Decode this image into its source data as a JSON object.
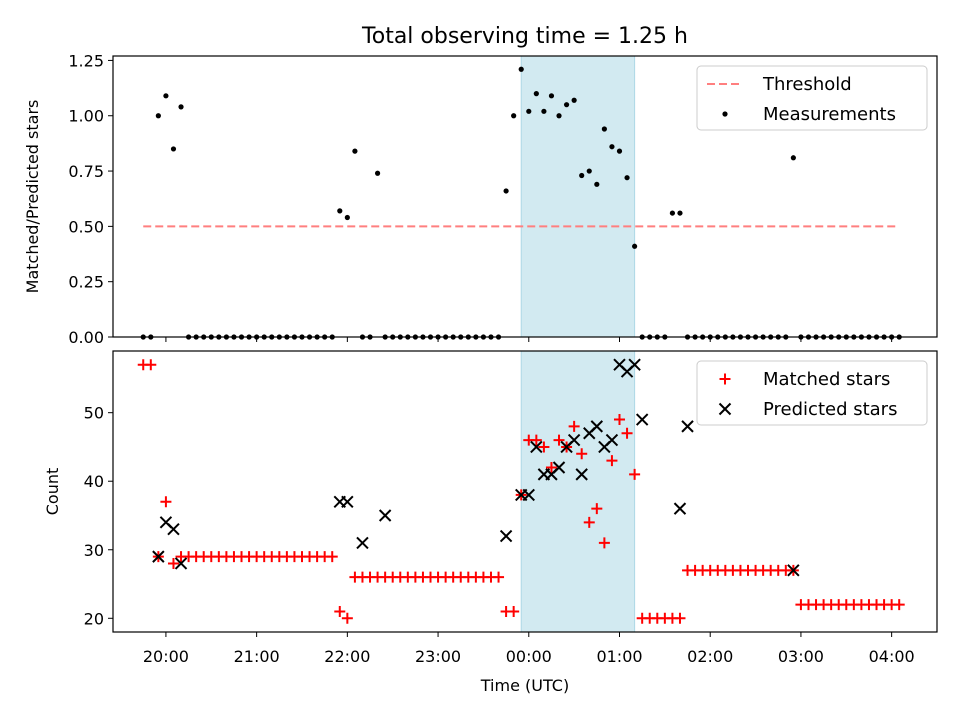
{
  "title": "Total observing time = 1.25 h",
  "colors": {
    "threshold": "#ff7f7f",
    "measurements": "#000000",
    "matched": "#ff0000",
    "predicted": "#000000",
    "window": "#add8e6"
  },
  "chart_data": [
    {
      "type": "scatter",
      "ylabel": "Matched/Predicted stars",
      "xlim": [
        "19:25",
        "04:30"
      ],
      "ylim": [
        0,
        1.27
      ],
      "yticks": [
        "0.00",
        "0.25",
        "0.50",
        "0.75",
        "1.00",
        "1.25"
      ],
      "xticks": [
        "20:00",
        "21:00",
        "22:00",
        "23:00",
        "00:00",
        "01:00",
        "02:00",
        "03:00",
        "04:00"
      ],
      "highlight_window": [
        "23:55",
        "01:10"
      ],
      "legend_position": "upper right",
      "series": [
        {
          "name": "Threshold",
          "style": "dashed-line",
          "x": [
            "19:45",
            "04:05"
          ],
          "y": [
            0.5,
            0.5
          ]
        },
        {
          "name": "Measurements",
          "style": "dot",
          "x": [
            "19:45",
            "19:50",
            "19:55",
            "20:00",
            "20:05",
            "20:10",
            "20:15",
            "20:20",
            "20:25",
            "20:30",
            "20:35",
            "20:40",
            "20:45",
            "20:50",
            "20:55",
            "21:00",
            "21:05",
            "21:10",
            "21:15",
            "21:20",
            "21:25",
            "21:30",
            "21:35",
            "21:40",
            "21:45",
            "21:50",
            "21:55",
            "22:00",
            "22:05",
            "22:10",
            "22:15",
            "22:20",
            "22:25",
            "22:30",
            "22:35",
            "22:40",
            "22:45",
            "22:50",
            "22:55",
            "23:00",
            "23:05",
            "23:10",
            "23:15",
            "23:20",
            "23:25",
            "23:30",
            "23:35",
            "23:40",
            "23:45",
            "23:50",
            "23:55",
            "00:00",
            "00:05",
            "00:10",
            "00:15",
            "00:20",
            "00:25",
            "00:30",
            "00:35",
            "00:40",
            "00:45",
            "00:50",
            "00:55",
            "01:00",
            "01:05",
            "01:10",
            "01:15",
            "01:20",
            "01:25",
            "01:30",
            "01:35",
            "01:40",
            "01:45",
            "01:50",
            "01:55",
            "02:00",
            "02:05",
            "02:10",
            "02:15",
            "02:20",
            "02:25",
            "02:30",
            "02:35",
            "02:40",
            "02:45",
            "02:50",
            "02:55",
            "03:00",
            "03:05",
            "03:10",
            "03:15",
            "03:20",
            "03:25",
            "03:30",
            "03:35",
            "03:40",
            "03:45",
            "03:50",
            "03:55",
            "04:00",
            "04:05"
          ],
          "y": [
            0,
            0,
            1.0,
            1.09,
            0.85,
            1.04,
            0,
            0,
            0,
            0,
            0,
            0,
            0,
            0,
            0,
            0,
            0,
            0,
            0,
            0,
            0,
            0,
            0,
            0,
            0,
            0,
            0.57,
            0.54,
            0.84,
            0,
            0,
            0.74,
            0,
            0,
            0,
            0,
            0,
            0,
            0,
            0,
            0,
            0,
            0,
            0,
            0,
            0,
            0,
            0,
            0.66,
            1.0,
            1.21,
            1.02,
            1.1,
            1.02,
            1.09,
            1.0,
            1.05,
            1.07,
            0.73,
            0.75,
            0.69,
            0.94,
            0.86,
            0.84,
            0.72,
            0.41,
            0,
            0,
            0,
            0,
            0.56,
            0.56,
            0,
            0,
            0,
            0,
            0,
            0,
            0,
            0,
            0,
            0,
            0,
            0,
            0,
            0,
            0.81,
            0,
            0,
            0,
            0,
            0,
            0,
            0,
            0,
            0,
            0,
            0,
            0,
            0,
            0
          ]
        }
      ]
    },
    {
      "type": "scatter",
      "xlabel": "Time (UTC)",
      "ylabel": "Count",
      "xlim": [
        "19:25",
        "04:30"
      ],
      "ylim": [
        18,
        59
      ],
      "yticks": [
        "20",
        "30",
        "40",
        "50"
      ],
      "xticks": [
        "20:00",
        "21:00",
        "22:00",
        "23:00",
        "00:00",
        "01:00",
        "02:00",
        "03:00",
        "04:00"
      ],
      "highlight_window": [
        "23:55",
        "01:10"
      ],
      "legend_position": "upper right",
      "series": [
        {
          "name": "Matched stars",
          "style": "plus",
          "x": [
            "19:45",
            "19:50",
            "19:55",
            "20:00",
            "20:05",
            "20:10",
            "20:15",
            "20:20",
            "20:25",
            "20:30",
            "20:35",
            "20:40",
            "20:45",
            "20:50",
            "20:55",
            "21:00",
            "21:05",
            "21:10",
            "21:15",
            "21:20",
            "21:25",
            "21:30",
            "21:35",
            "21:40",
            "21:45",
            "21:50",
            "21:55",
            "22:00",
            "22:05",
            "22:10",
            "22:15",
            "22:20",
            "22:25",
            "22:30",
            "22:35",
            "22:40",
            "22:45",
            "22:50",
            "22:55",
            "23:00",
            "23:05",
            "23:10",
            "23:15",
            "23:20",
            "23:25",
            "23:30",
            "23:35",
            "23:40",
            "23:45",
            "23:50",
            "23:55",
            "00:00",
            "00:05",
            "00:10",
            "00:15",
            "00:20",
            "00:25",
            "00:30",
            "00:35",
            "00:40",
            "00:45",
            "00:50",
            "00:55",
            "01:00",
            "01:05",
            "01:10",
            "01:15",
            "01:20",
            "01:25",
            "01:30",
            "01:35",
            "01:40",
            "01:45",
            "01:50",
            "01:55",
            "02:00",
            "02:05",
            "02:10",
            "02:15",
            "02:20",
            "02:25",
            "02:30",
            "02:35",
            "02:40",
            "02:45",
            "02:50",
            "02:55",
            "03:00",
            "03:05",
            "03:10",
            "03:15",
            "03:20",
            "03:25",
            "03:30",
            "03:35",
            "03:40",
            "03:45",
            "03:50",
            "03:55",
            "04:00",
            "04:05"
          ],
          "y": [
            57,
            57,
            29,
            37,
            28,
            29,
            29,
            29,
            29,
            29,
            29,
            29,
            29,
            29,
            29,
            29,
            29,
            29,
            29,
            29,
            29,
            29,
            29,
            29,
            29,
            29,
            21,
            20,
            26,
            26,
            26,
            26,
            26,
            26,
            26,
            26,
            26,
            26,
            26,
            26,
            26,
            26,
            26,
            26,
            26,
            26,
            26,
            26,
            21,
            21,
            38,
            46,
            46,
            45,
            42,
            46,
            45,
            48,
            44,
            34,
            36,
            31,
            43,
            49,
            47,
            41,
            20,
            20,
            20,
            20,
            20,
            20,
            27,
            27,
            27,
            27,
            27,
            27,
            27,
            27,
            27,
            27,
            27,
            27,
            27,
            27,
            27,
            22,
            22,
            22,
            22,
            22,
            22,
            22,
            22,
            22,
            22,
            22,
            22,
            22,
            22
          ]
        },
        {
          "name": "Predicted stars",
          "style": "x",
          "x": [
            "19:55",
            "20:00",
            "20:05",
            "20:10",
            "21:55",
            "22:00",
            "22:10",
            "22:25",
            "23:45",
            "23:55",
            "00:00",
            "00:05",
            "00:10",
            "00:15",
            "00:20",
            "00:25",
            "00:30",
            "00:35",
            "00:40",
            "00:45",
            "00:50",
            "00:55",
            "01:00",
            "01:05",
            "01:10",
            "01:15",
            "01:40",
            "01:45",
            "02:55"
          ],
          "y": [
            29,
            34,
            33,
            28,
            37,
            37,
            31,
            35,
            32,
            38,
            38,
            45,
            41,
            41,
            42,
            45,
            46,
            41,
            47,
            48,
            45,
            46,
            57,
            56,
            57,
            49,
            36,
            48,
            27
          ]
        }
      ]
    }
  ]
}
